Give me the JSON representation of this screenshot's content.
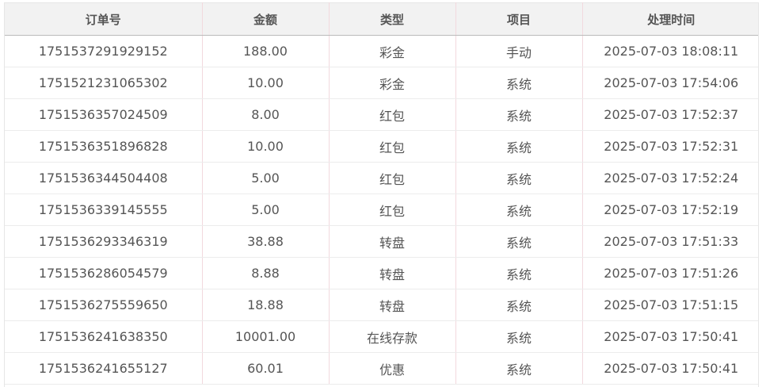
{
  "table": {
    "columns": [
      "订单号",
      "金额",
      "类型",
      "项目",
      "处理时间"
    ],
    "rows": [
      [
        "1751537291929152",
        "188.00",
        "彩金",
        "手动",
        "2025-07-03 18:08:11"
      ],
      [
        "1751521231065302",
        "10.00",
        "彩金",
        "系统",
        "2025-07-03 17:54:06"
      ],
      [
        "1751536357024509",
        "8.00",
        "红包",
        "系统",
        "2025-07-03 17:52:37"
      ],
      [
        "1751536351896828",
        "10.00",
        "红包",
        "系统",
        "2025-07-03 17:52:31"
      ],
      [
        "1751536344504408",
        "5.00",
        "红包",
        "系统",
        "2025-07-03 17:52:24"
      ],
      [
        "1751536339145555",
        "5.00",
        "红包",
        "系统",
        "2025-07-03 17:52:19"
      ],
      [
        "1751536293346319",
        "38.88",
        "转盘",
        "系统",
        "2025-07-03 17:51:33"
      ],
      [
        "1751536286054579",
        "8.88",
        "转盘",
        "系统",
        "2025-07-03 17:51:26"
      ],
      [
        "1751536275559650",
        "18.88",
        "转盘",
        "系统",
        "2025-07-03 17:51:15"
      ],
      [
        "1751536241638350",
        "10001.00",
        "在线存款",
        "系统",
        "2025-07-03 17:50:41"
      ],
      [
        "1751536241655127",
        "60.01",
        "优惠",
        "系统",
        "2025-07-03 17:50:41"
      ]
    ]
  }
}
